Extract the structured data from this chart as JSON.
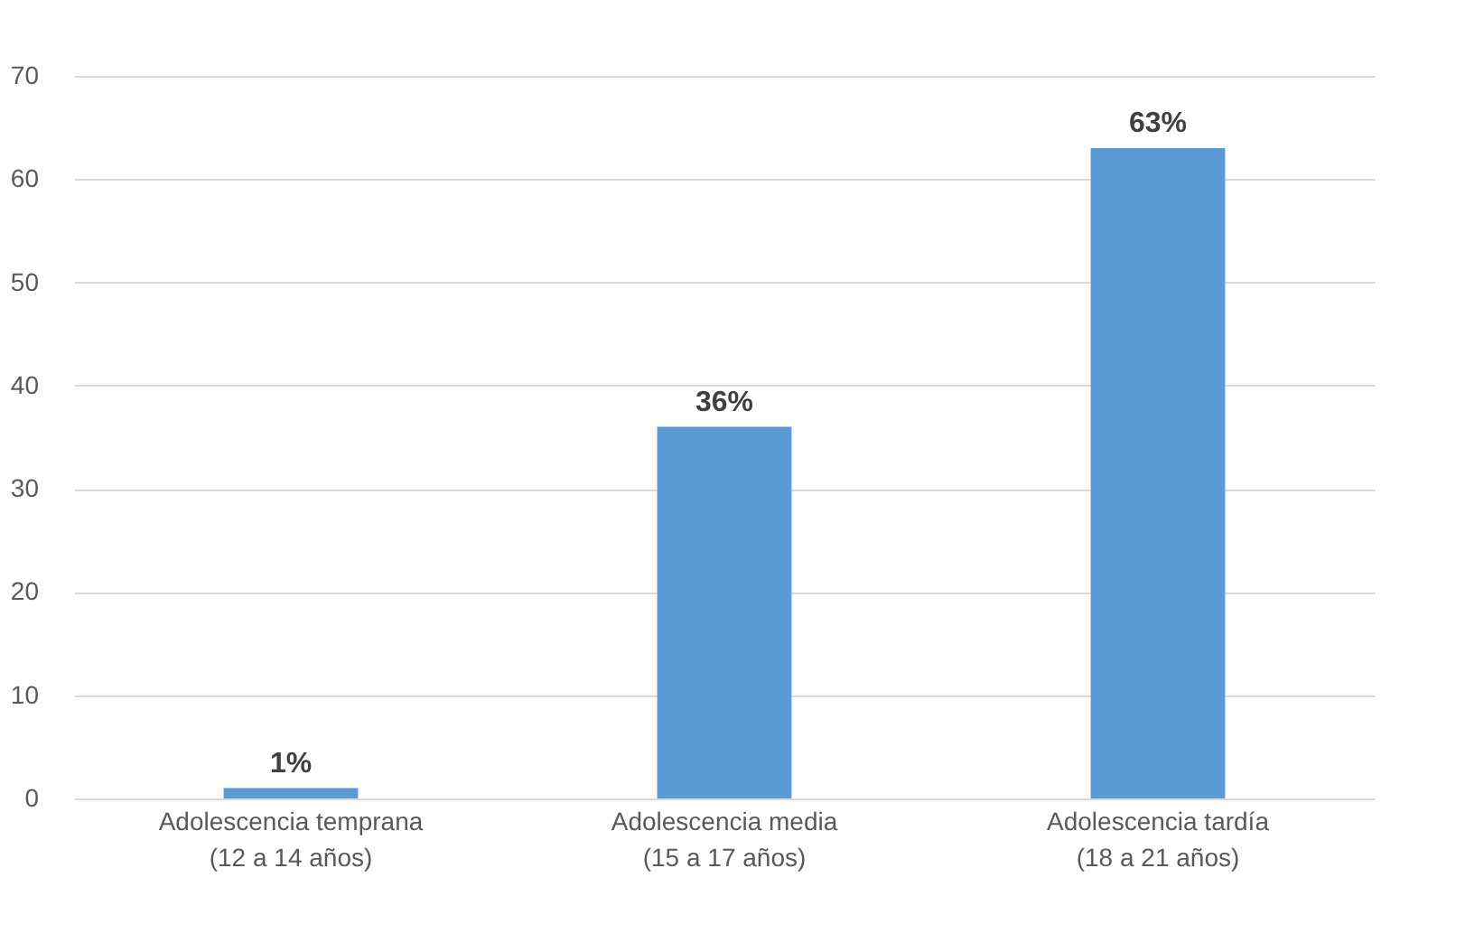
{
  "chart_data": {
    "type": "bar",
    "categories": [
      "Adolescencia temprana\n(12 a 14 años)",
      "Adolescencia media\n(15 a 17 años)",
      "Adolescencia tardía\n(18 a 21 años)"
    ],
    "values": [
      1,
      36,
      63
    ],
    "color": "#5b9bd5",
    "value_labels": [
      "1%",
      "36%",
      "63%"
    ],
    "ylim": [
      0,
      70
    ],
    "yticks": [
      0,
      10,
      20,
      30,
      40,
      50,
      60,
      70
    ],
    "grid": "y"
  }
}
